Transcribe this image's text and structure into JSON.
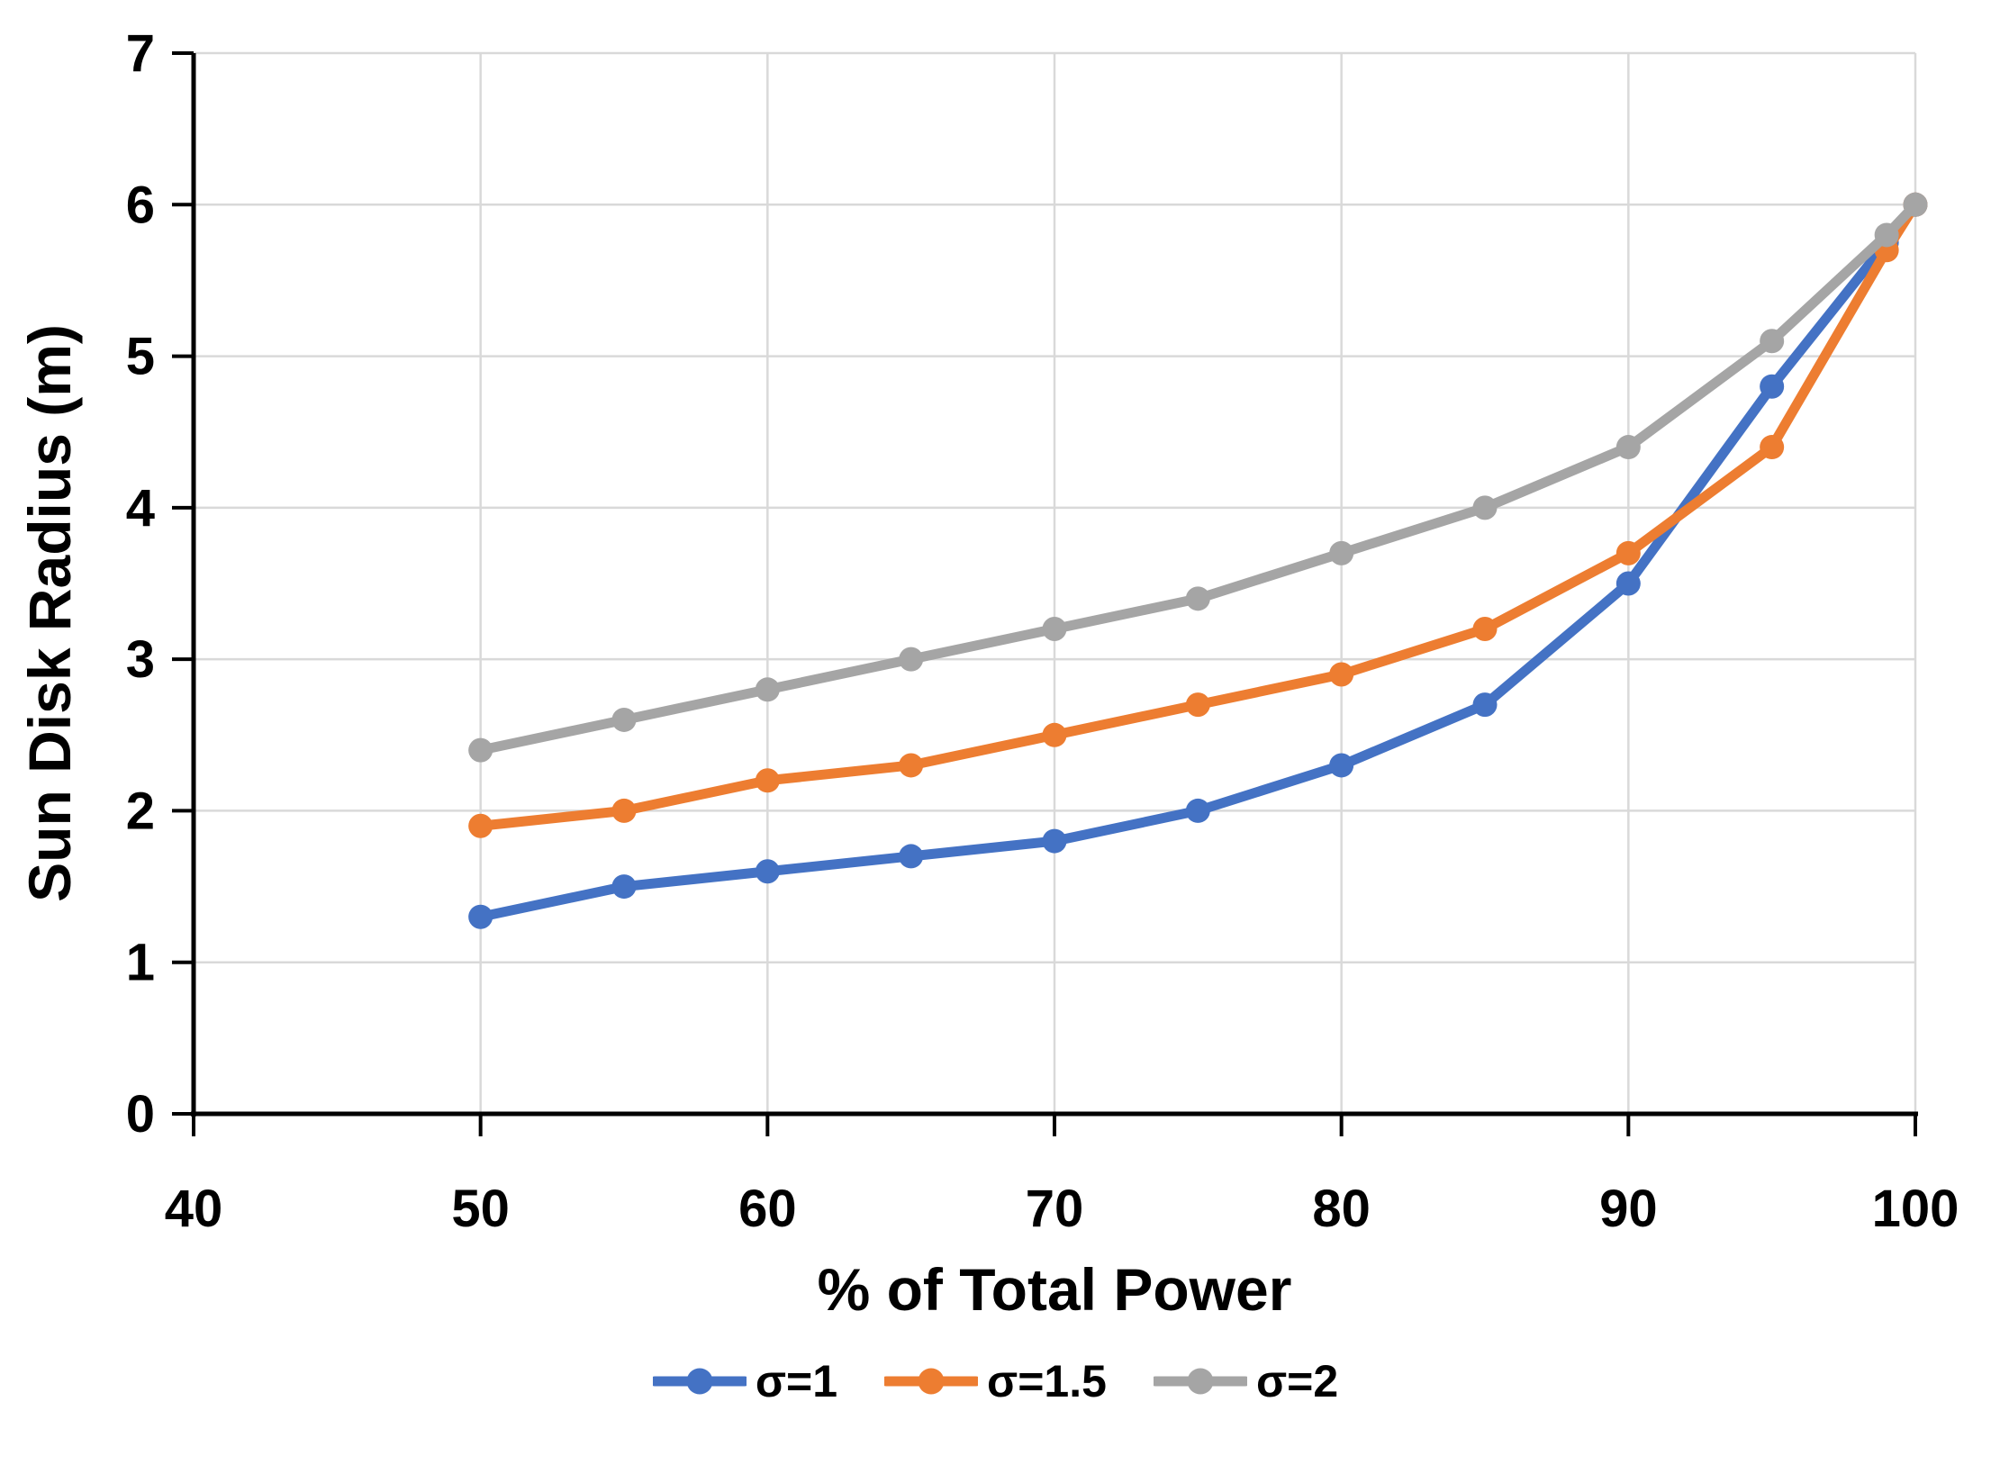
{
  "chart_data": {
    "type": "line",
    "title": "",
    "xlabel": "% of Total Power",
    "ylabel": "Sun Disk Radius (m)",
    "xlim": [
      40,
      100
    ],
    "ylim": [
      0,
      7
    ],
    "x_ticks": [
      40,
      50,
      60,
      70,
      80,
      90,
      100
    ],
    "y_ticks": [
      0,
      1,
      2,
      3,
      4,
      5,
      6,
      7
    ],
    "grid": true,
    "legend_position": "bottom",
    "background_color": "#ffffff",
    "gridline_color": "#d9d9d9",
    "axis_color": "#000000",
    "x": [
      50,
      55,
      60,
      65,
      70,
      75,
      80,
      85,
      90,
      95,
      99,
      100
    ],
    "series": [
      {
        "name": "σ=1",
        "color": "#4472C4",
        "values": [
          1.3,
          1.5,
          1.6,
          1.7,
          1.8,
          2.0,
          2.3,
          2.7,
          3.5,
          4.8,
          5.75,
          6.0
        ]
      },
      {
        "name": "σ=1.5",
        "color": "#ED7D31",
        "values": [
          1.9,
          2.0,
          2.2,
          2.3,
          2.5,
          2.7,
          2.9,
          3.2,
          3.7,
          4.4,
          5.7,
          6.0
        ]
      },
      {
        "name": "σ=2",
        "color": "#A5A5A5",
        "values": [
          2.4,
          2.6,
          2.8,
          3.0,
          3.2,
          3.4,
          3.7,
          4.0,
          4.4,
          5.1,
          5.8,
          6.0
        ]
      }
    ]
  }
}
